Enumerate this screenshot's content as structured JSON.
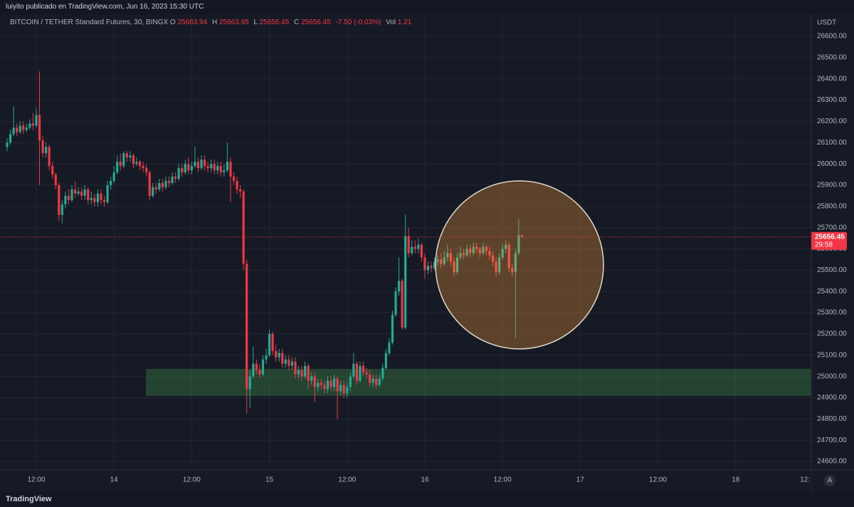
{
  "header": {
    "publisher": "luiyito publicado en TradingView.com, Jun 16, 2023 15:30 UTC"
  },
  "legend": {
    "symbol": "BITCOIN / TETHER Standard Futures, 30, BINGX",
    "items": [
      {
        "label": "O",
        "value": "25663.94"
      },
      {
        "label": "H",
        "value": "25663.95"
      },
      {
        "label": "L",
        "value": "25656.45"
      },
      {
        "label": "C",
        "value": "25656.45"
      }
    ],
    "change": "-7.50 (-0.03%)",
    "volume_label": "Vol",
    "volume": "1.21"
  },
  "chart_data": {
    "type": "candlestick",
    "open": [
      26080,
      26100,
      26140,
      26170,
      26150,
      26180,
      26160,
      26170,
      26190,
      26180,
      26230,
      26110,
      26050,
      26080,
      25990,
      25950,
      25900,
      25760,
      25810,
      25850,
      25830,
      25880,
      25860,
      25870,
      25850,
      25880,
      25830,
      25840,
      25820,
      25860,
      25830,
      25820,
      25900,
      25920,
      25960,
      26010,
      25990,
      26050,
      26030,
      26040,
      26000,
      26010,
      25990,
      25980,
      25960,
      25850,
      25890,
      25880,
      25910,
      25890,
      25920,
      25910,
      25940,
      25930,
      25980,
      25960,
      26000,
      25970,
      25990,
      26010,
      25980,
      26020,
      25990,
      25980,
      26000,
      25970,
      25990,
      25960,
      25970,
      26010,
      25940,
      25920,
      25880,
      25870,
      25530,
      24940,
      25000,
      25060,
      25030,
      25010,
      25080,
      25100,
      25200,
      25120,
      25090,
      25110,
      25060,
      25080,
      25050,
      25070,
      25010,
      25030,
      25000,
      25050,
      24980,
      25000,
      24950,
      24970,
      24960,
      24940,
      24980,
      24950,
      24990,
      24930,
      24960,
      24920,
      24950,
      25000,
      25060,
      24980,
      25050,
      25020,
      25010,
      24970,
      24990,
      24960,
      24990,
      25040,
      25110,
      25160,
      25290,
      25400,
      25450,
      25230,
      25660,
      25580,
      25610,
      25600,
      25620,
      25560,
      25500,
      25520,
      25510,
      25540,
      25550,
      25530,
      25560,
      25580,
      25540,
      25490,
      25560,
      25580,
      25570,
      25600,
      25580,
      25610,
      25600,
      25580,
      25610,
      25590,
      25570,
      25540,
      25490,
      25560,
      25600,
      25620,
      25510,
      25490,
      25580,
      25663.94
    ],
    "high": [
      26120,
      26160,
      26270,
      26190,
      26200,
      26200,
      26190,
      26210,
      26240,
      26260,
      26435,
      26130,
      26100,
      26090,
      26010,
      25960,
      25910,
      25830,
      25870,
      25880,
      25900,
      25920,
      25890,
      25890,
      25900,
      25890,
      25870,
      25860,
      25880,
      25880,
      25850,
      25920,
      25940,
      25990,
      26040,
      26050,
      26060,
      26060,
      26060,
      26050,
      26030,
      26020,
      26010,
      26000,
      25970,
      25910,
      25910,
      25930,
      25930,
      25940,
      25940,
      25960,
      25960,
      26000,
      26000,
      26020,
      26030,
      26010,
      26080,
      26030,
      26040,
      26040,
      26010,
      26020,
      26020,
      26010,
      26010,
      26000,
      26100,
      26030,
      25960,
      25940,
      25900,
      25880,
      25550,
      25030,
      25140,
      25080,
      25060,
      25100,
      25130,
      25220,
      25210,
      25150,
      25130,
      25130,
      25100,
      25100,
      25090,
      25090,
      25050,
      25050,
      25070,
      25060,
      25020,
      25020,
      24990,
      24990,
      24980,
      25000,
      25000,
      25010,
      25000,
      24980,
      24980,
      24970,
      25020,
      25110,
      25070,
      25070,
      25070,
      25040,
      25030,
      25010,
      25010,
      25010,
      25060,
      25130,
      25180,
      25310,
      25420,
      25560,
      25460,
      25760,
      25700,
      25640,
      25640,
      25650,
      25630,
      25580,
      25540,
      25540,
      25560,
      25570,
      25580,
      25590,
      25620,
      25600,
      25560,
      25580,
      25610,
      25600,
      25620,
      25620,
      25630,
      25630,
      25610,
      25630,
      25620,
      25610,
      25590,
      25560,
      25580,
      25620,
      25640,
      25630,
      25530,
      25600,
      25740,
      25663.95
    ],
    "low": [
      26060,
      26090,
      26130,
      26130,
      26140,
      26140,
      26150,
      26160,
      26160,
      26170,
      25900,
      26030,
      26030,
      25970,
      25930,
      25880,
      25730,
      25720,
      25790,
      25810,
      25820,
      25840,
      25850,
      25830,
      25830,
      25810,
      25810,
      25800,
      25800,
      25810,
      25800,
      25810,
      25880,
      25910,
      25950,
      25970,
      25980,
      26010,
      26010,
      25980,
      25990,
      25970,
      25960,
      25940,
      25830,
      25840,
      25860,
      25870,
      25870,
      25880,
      25890,
      25900,
      25910,
      25920,
      25940,
      25950,
      25950,
      25950,
      25980,
      25960,
      25970,
      25970,
      25960,
      25960,
      25950,
      25950,
      25940,
      25940,
      25960,
      25820,
      25900,
      25860,
      25840,
      25500,
      24825,
      24850,
      24990,
      25010,
      24990,
      25000,
      25060,
      25090,
      25100,
      25070,
      25070,
      25040,
      25040,
      25030,
      25030,
      24990,
      24990,
      24980,
      24990,
      24940,
      24960,
      24880,
      24930,
      24940,
      24920,
      24920,
      24930,
      24930,
      24800,
      24910,
      24900,
      24900,
      24930,
      24990,
      24960,
      24970,
      25000,
      24990,
      24950,
      24950,
      24940,
      24950,
      24980,
      25030,
      25100,
      25150,
      25280,
      25380,
      25220,
      25220,
      25560,
      25570,
      25580,
      25580,
      25540,
      25460,
      25480,
      25490,
      25500,
      25520,
      25510,
      25520,
      25540,
      25520,
      25470,
      25480,
      25550,
      25550,
      25560,
      25560,
      25570,
      25580,
      25560,
      25570,
      25570,
      25550,
      25520,
      25470,
      25480,
      25550,
      25580,
      25490,
      25470,
      25180,
      25570,
      25656.45
    ],
    "close": [
      26100,
      26140,
      26170,
      26150,
      26180,
      26160,
      26170,
      26190,
      26180,
      26230,
      26110,
      26050,
      26080,
      25990,
      25950,
      25900,
      25760,
      25810,
      25850,
      25830,
      25880,
      25860,
      25870,
      25850,
      25880,
      25830,
      25840,
      25820,
      25860,
      25830,
      25820,
      25900,
      25920,
      25960,
      26010,
      25990,
      26050,
      26030,
      26040,
      26000,
      26010,
      25990,
      25980,
      25960,
      25850,
      25890,
      25880,
      25910,
      25890,
      25920,
      25910,
      25940,
      25930,
      25980,
      25960,
      26000,
      25970,
      25990,
      26010,
      25980,
      26020,
      25990,
      25980,
      26000,
      25970,
      25990,
      25960,
      25970,
      26010,
      25940,
      25920,
      25880,
      25870,
      25530,
      24940,
      25000,
      25060,
      25030,
      25010,
      25080,
      25100,
      25200,
      25120,
      25090,
      25110,
      25060,
      25080,
      25050,
      25070,
      25010,
      25030,
      25000,
      25050,
      24980,
      25000,
      24950,
      24970,
      24960,
      24940,
      24980,
      24950,
      24990,
      24930,
      24960,
      24920,
      24950,
      25000,
      25060,
      24980,
      25050,
      25020,
      25010,
      24970,
      24990,
      24960,
      24990,
      25040,
      25110,
      25160,
      25290,
      25400,
      25450,
      25230,
      25660,
      25580,
      25610,
      25600,
      25620,
      25560,
      25500,
      25520,
      25510,
      25540,
      25550,
      25530,
      25560,
      25580,
      25540,
      25490,
      25560,
      25580,
      25570,
      25600,
      25580,
      25610,
      25600,
      25580,
      25610,
      25590,
      25570,
      25540,
      25490,
      25560,
      25600,
      25620,
      25510,
      25490,
      25580,
      25665,
      25656.45
    ],
    "up_color": "#22ab94",
    "down_color": "#f23645",
    "xlim": [
      -2.2,
      248.35
    ],
    "xticks": [
      {
        "value": 9,
        "label": "12:00"
      },
      {
        "value": 33,
        "label": "14"
      },
      {
        "value": 57,
        "label": "12:00"
      },
      {
        "value": 81,
        "label": "15"
      },
      {
        "value": 105,
        "label": "12:00"
      },
      {
        "value": 129,
        "label": "16"
      },
      {
        "value": 153,
        "label": "12:00"
      },
      {
        "value": 177,
        "label": "17"
      },
      {
        "value": 201,
        "label": "12:00"
      },
      {
        "value": 225,
        "label": "18"
      },
      {
        "value": 249,
        "label": "12:"
      }
    ],
    "ylim": [
      24560,
      26704
    ],
    "yticks": [
      {
        "value": 24600,
        "label": "24600.00"
      },
      {
        "value": 24700,
        "label": "24700.00"
      },
      {
        "value": 24800,
        "label": "24800.00"
      },
      {
        "value": 24900,
        "label": "24900.00"
      },
      {
        "value": 25000,
        "label": "25000.00"
      },
      {
        "value": 25100,
        "label": "25100.00"
      },
      {
        "value": 25200,
        "label": "25200.00"
      },
      {
        "value": 25300,
        "label": "25300.00"
      },
      {
        "value": 25400,
        "label": "25400.00"
      },
      {
        "value": 25500,
        "label": "25500.00"
      },
      {
        "value": 25600,
        "label": "25600.00"
      },
      {
        "value": 25700,
        "label": "25700.00"
      },
      {
        "value": 25800,
        "label": "25800.00"
      },
      {
        "value": 25900,
        "label": "25900.00"
      },
      {
        "value": 26000,
        "label": "26000.00"
      },
      {
        "value": 26100,
        "label": "26100.00"
      },
      {
        "value": 26200,
        "label": "26200.00"
      },
      {
        "value": 26300,
        "label": "26300.00"
      },
      {
        "value": 26400,
        "label": "26400.00"
      },
      {
        "value": 26500,
        "label": "26500.00"
      },
      {
        "value": 26600,
        "label": "26600.00"
      }
    ],
    "y_label": "USDT",
    "grid": true,
    "last_price": 25656.45,
    "countdown": "29:58"
  },
  "footer": {
    "logo": "TradingView",
    "auto_button": "A"
  }
}
